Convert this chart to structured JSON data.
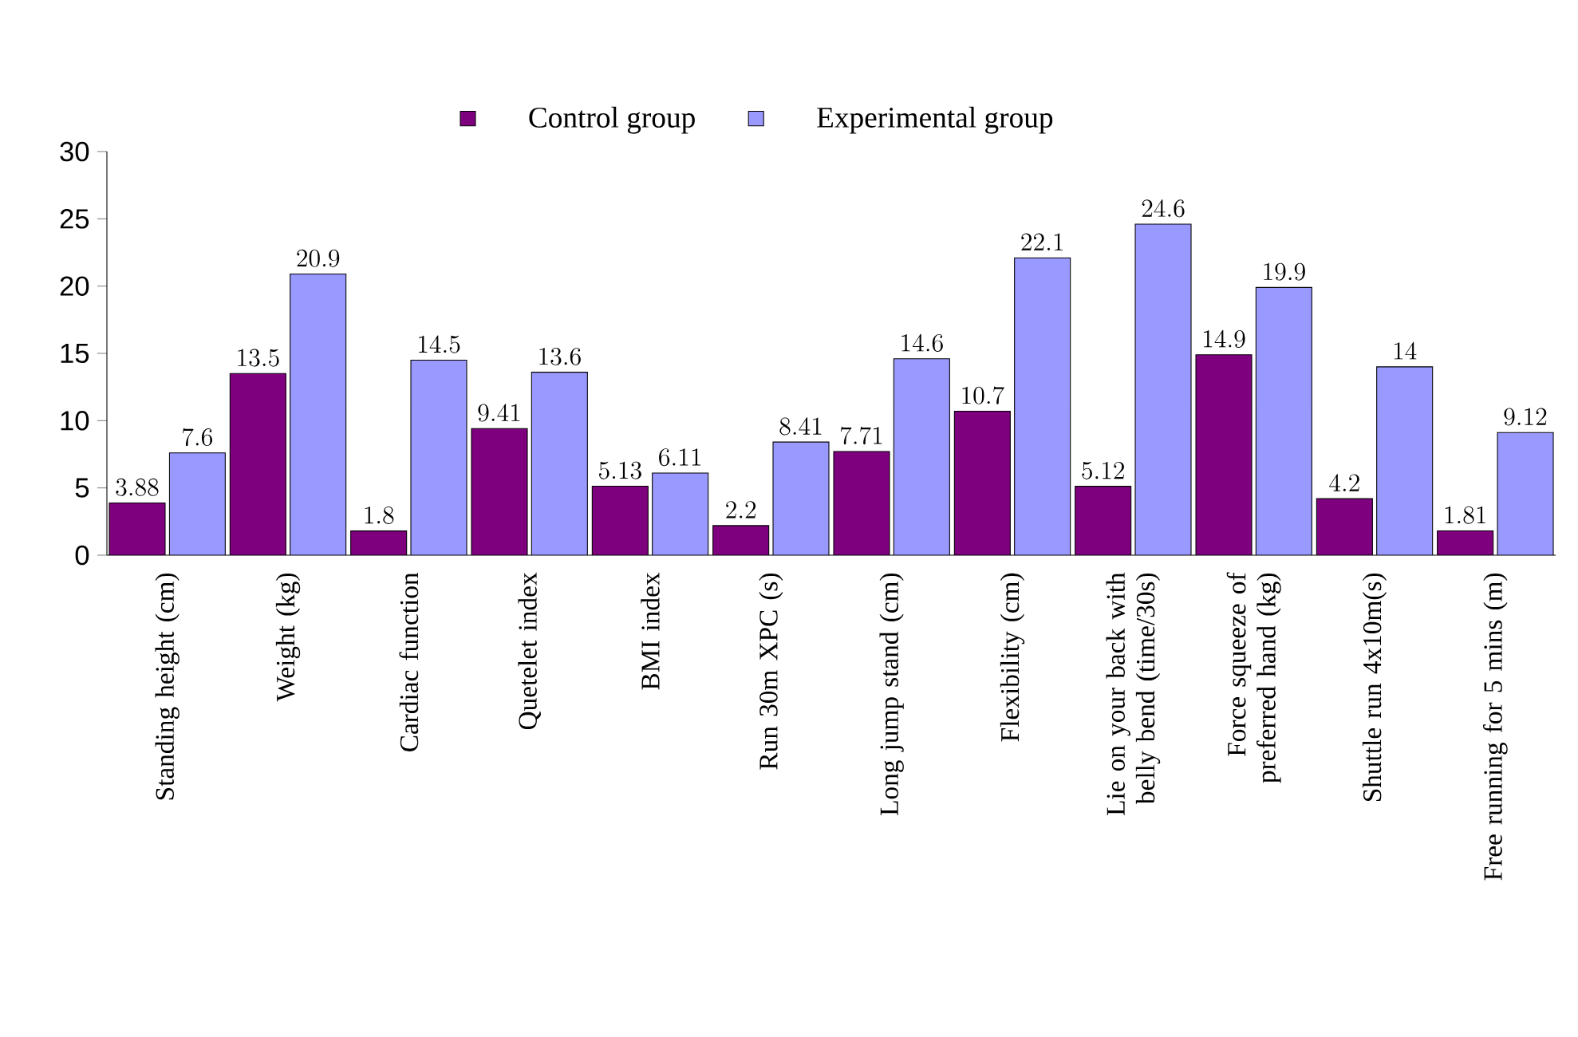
{
  "chart_data": {
    "type": "bar",
    "categories": [
      "Standing height (cm)",
      "Weight (kg)",
      "Cardiac function",
      "Quetelet index",
      "BMI index",
      "Run 30m XPC (s)",
      "Long jump stand (cm)",
      "Flexibility (cm)",
      "Lie on your back with belly bend (time/30s)",
      "Force squeeze of preferred hand (kg)",
      "Shuttle run 4x10m(s)",
      "Free running for 5 mins (m)"
    ],
    "series": [
      {
        "name": "Control group",
        "color": "#7f007f",
        "values": [
          3.88,
          13.5,
          1.8,
          9.41,
          5.13,
          2.2,
          7.71,
          10.7,
          5.12,
          14.9,
          4.2,
          1.81
        ]
      },
      {
        "name": "Experimental group",
        "color": "#9999ff",
        "values": [
          7.6,
          20.9,
          14.5,
          13.6,
          6.11,
          8.41,
          14.6,
          22.1,
          24.6,
          19.9,
          14,
          9.12
        ]
      }
    ],
    "ylim": [
      0,
      30
    ],
    "yticks": [
      0,
      5,
      10,
      15,
      20,
      25,
      30
    ],
    "data_labels": true,
    "legend": "top",
    "grid": false
  }
}
